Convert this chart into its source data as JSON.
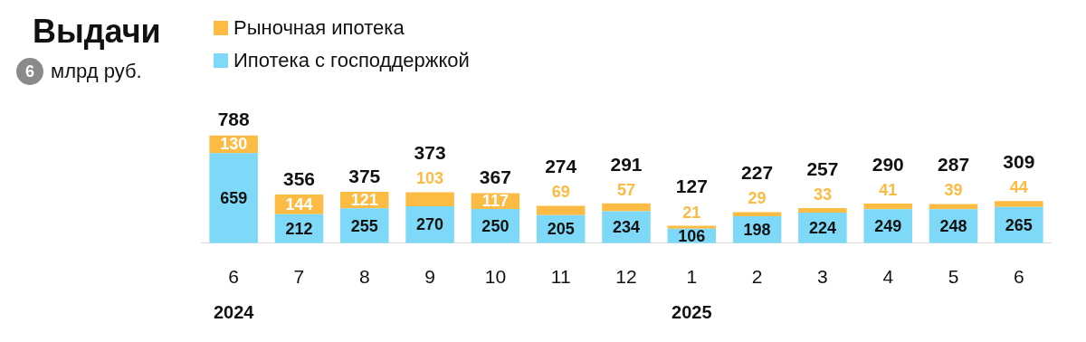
{
  "chart_data": {
    "type": "bar",
    "title": "Выдачи",
    "subtitle": "млрд руб.",
    "annotations": [
      "6",
      "2024",
      "2025"
    ],
    "categories": [
      "6",
      "7",
      "8",
      "9",
      "10",
      "11",
      "12",
      "1",
      "2",
      "3",
      "4",
      "5",
      "6"
    ],
    "stacked": true,
    "data_labels": true,
    "legend": "top left",
    "series": [
      {
        "name": "Ипотека с господдержкой",
        "color": "#7dd9f7",
        "values": [
          659,
          212,
          255,
          270,
          250,
          205,
          234,
          106,
          198,
          224,
          249,
          248,
          265
        ]
      },
      {
        "name": "Рыночная ипотека",
        "color": "#fcbb42",
        "values": [
          130,
          144,
          121,
          103,
          117,
          69,
          57,
          21,
          29,
          33,
          41,
          39,
          44
        ]
      }
    ],
    "totals": [
      "788",
      "356",
      "375",
      "373",
      "367",
      "274",
      "291",
      "127",
      "227",
      "257",
      "290",
      "287",
      "309"
    ]
  }
}
